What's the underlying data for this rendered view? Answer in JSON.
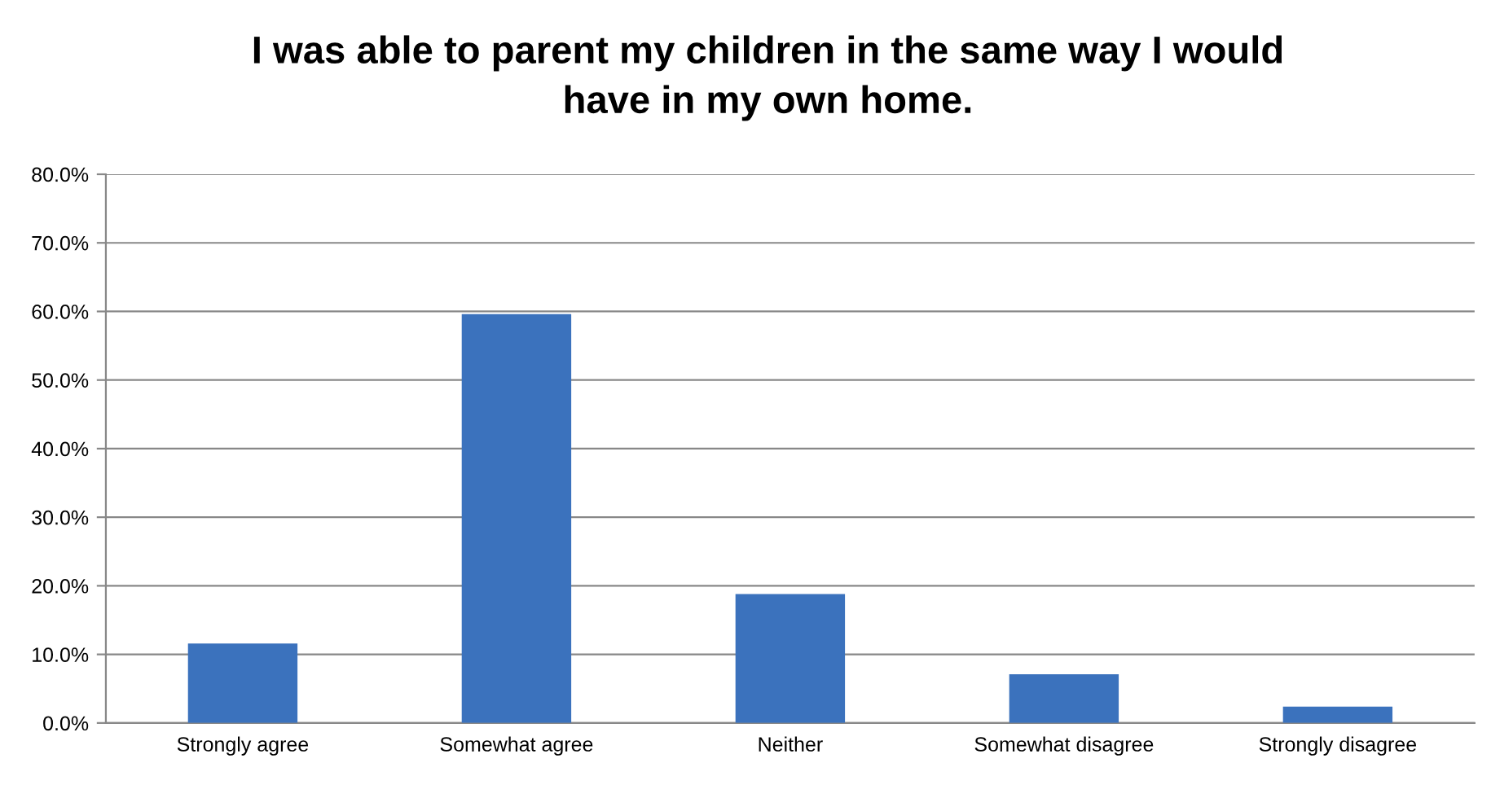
{
  "chart_data": {
    "type": "bar",
    "title": "I was able to parent my children in the same way I would\nhave in my own home.",
    "categories": [
      "Strongly agree",
      "Somewhat agree",
      "Neither",
      "Somewhat disagree",
      "Strongly disagree"
    ],
    "values": [
      11.6,
      59.6,
      18.8,
      7.1,
      2.4
    ],
    "color": "#3b72bd",
    "ylim": [
      0,
      80
    ],
    "yticks": [
      {
        "value": 0,
        "label": "0.0%"
      },
      {
        "value": 10,
        "label": "10.0%"
      },
      {
        "value": 20,
        "label": "20.0%"
      },
      {
        "value": 30,
        "label": "30.0%"
      },
      {
        "value": 40,
        "label": "40.0%"
      },
      {
        "value": 50,
        "label": "50.0%"
      },
      {
        "value": 60,
        "label": "60.0%"
      },
      {
        "value": 70,
        "label": "70.0%"
      },
      {
        "value": 80,
        "label": "80.0%"
      }
    ],
    "grid": "y"
  }
}
